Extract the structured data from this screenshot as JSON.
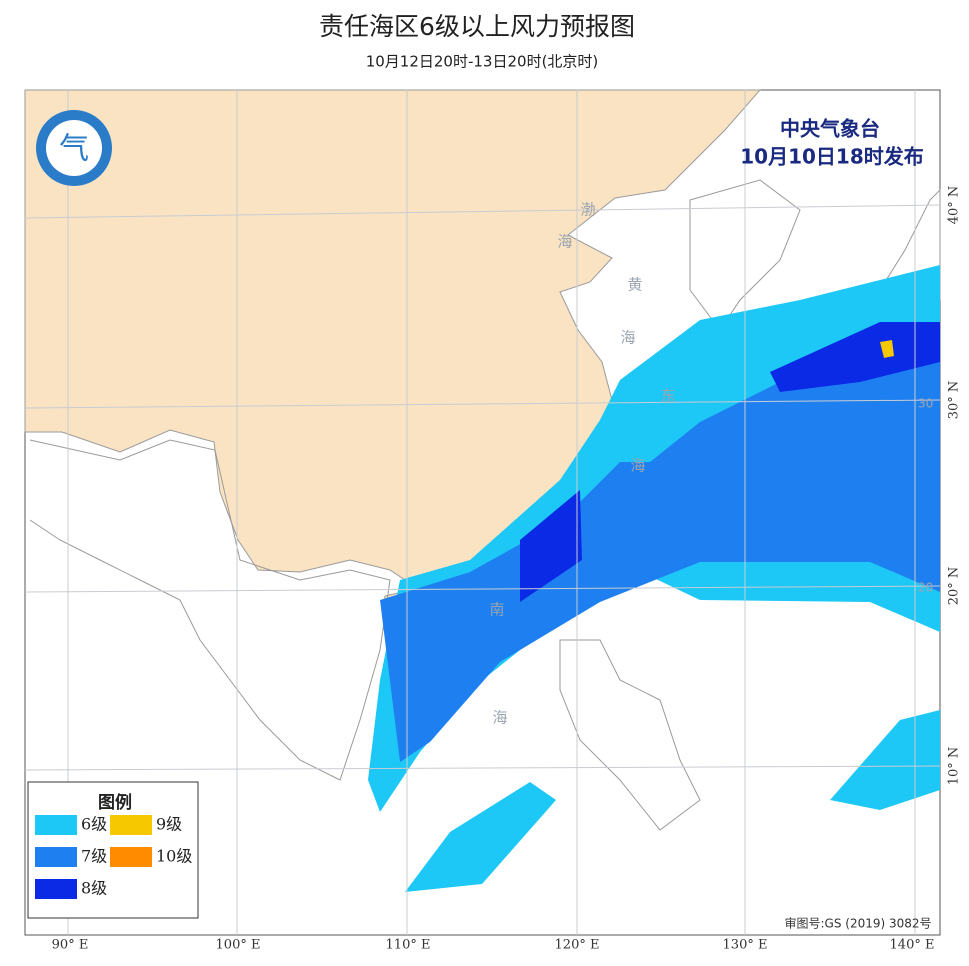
{
  "header": {
    "title": "责任海区6级以上风力预报图",
    "subtitle": "10月12日20时-13日20时(北京时)"
  },
  "issuer": {
    "agency": "中央气象台",
    "issued": "10月10日18时发布"
  },
  "sea_labels": [
    "渤",
    "海",
    "黄",
    "海",
    "东",
    "海",
    "南",
    "海"
  ],
  "lon_labels": [
    "90° E",
    "100° E",
    "110° E",
    "120° E",
    "130° E",
    "140° E"
  ],
  "lat_labels": [
    "40° N",
    "30° N",
    "20° N",
    "10° N"
  ],
  "grid_labels": [
    "30",
    "20"
  ],
  "legend": {
    "title": "图例",
    "items": [
      {
        "label": "6级",
        "color": "#1ec8f6"
      },
      {
        "label": "7级",
        "color": "#1e80f0"
      },
      {
        "label": "8级",
        "color": "#0a2ae6"
      },
      {
        "label": "9级",
        "color": "#f5c800"
      },
      {
        "label": "10级",
        "color": "#ff8c00"
      }
    ]
  },
  "approval": "审图号:GS (2019) 3082号"
}
